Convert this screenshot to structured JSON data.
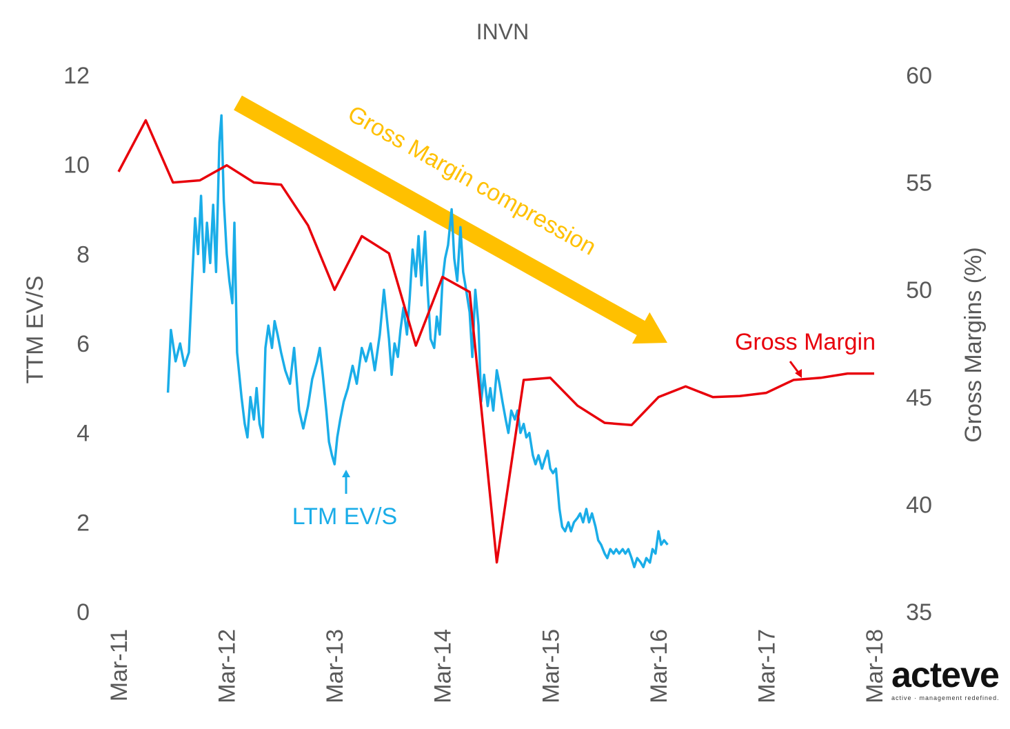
{
  "chart_data": {
    "type": "line",
    "title": "INVN",
    "x_tick_labels": [
      "Mar-11",
      "Mar-12",
      "Mar-13",
      "Mar-14",
      "Mar-15",
      "Mar-16",
      "Mar-17",
      "Mar-18"
    ],
    "xlim": [
      "2011-03",
      "2018-03"
    ],
    "y_left": {
      "label": "TTM EV/S",
      "ylim": [
        0,
        12
      ],
      "ticks": [
        "0",
        "2",
        "4",
        "6",
        "8",
        "10",
        "12"
      ]
    },
    "y_right": {
      "label": "Gross Margins (%)",
      "ylim": [
        35,
        60
      ],
      "ticks": [
        "35",
        "40",
        "45",
        "50",
        "55",
        "60"
      ]
    },
    "grid": false,
    "series": [
      {
        "name": "LTM EV/S",
        "axis": "left",
        "color": "#1AADE8",
        "points": [
          [
            "2011-08-15",
            4.9
          ],
          [
            "2011-08-25",
            6.3
          ],
          [
            "2011-09-10",
            5.6
          ],
          [
            "2011-09-25",
            6.0
          ],
          [
            "2011-10-10",
            5.5
          ],
          [
            "2011-10-25",
            5.8
          ],
          [
            "2011-11-05",
            7.4
          ],
          [
            "2011-11-15",
            8.8
          ],
          [
            "2011-11-25",
            8.0
          ],
          [
            "2011-12-05",
            9.3
          ],
          [
            "2011-12-15",
            7.6
          ],
          [
            "2011-12-25",
            8.7
          ],
          [
            "2012-01-05",
            7.8
          ],
          [
            "2012-01-15",
            9.1
          ],
          [
            "2012-01-25",
            7.6
          ],
          [
            "2012-02-05",
            10.5
          ],
          [
            "2012-02-12",
            11.1
          ],
          [
            "2012-02-20",
            9.2
          ],
          [
            "2012-03-01",
            8.0
          ],
          [
            "2012-03-10",
            7.4
          ],
          [
            "2012-03-20",
            6.9
          ],
          [
            "2012-03-27",
            8.7
          ],
          [
            "2012-04-05",
            5.8
          ],
          [
            "2012-04-20",
            4.8
          ],
          [
            "2012-05-01",
            4.2
          ],
          [
            "2012-05-10",
            3.9
          ],
          [
            "2012-05-20",
            4.8
          ],
          [
            "2012-06-01",
            4.3
          ],
          [
            "2012-06-10",
            5.0
          ],
          [
            "2012-06-20",
            4.2
          ],
          [
            "2012-07-01",
            3.9
          ],
          [
            "2012-07-10",
            5.9
          ],
          [
            "2012-07-20",
            6.4
          ],
          [
            "2012-08-01",
            5.9
          ],
          [
            "2012-08-10",
            6.5
          ],
          [
            "2012-08-20",
            6.2
          ],
          [
            "2012-09-01",
            5.8
          ],
          [
            "2012-09-15",
            5.4
          ],
          [
            "2012-10-01",
            5.1
          ],
          [
            "2012-10-15",
            5.9
          ],
          [
            "2012-11-01",
            4.5
          ],
          [
            "2012-11-15",
            4.1
          ],
          [
            "2012-12-01",
            4.6
          ],
          [
            "2012-12-15",
            5.2
          ],
          [
            "2013-01-01",
            5.6
          ],
          [
            "2013-01-10",
            5.9
          ],
          [
            "2013-01-20",
            5.3
          ],
          [
            "2013-02-01",
            4.5
          ],
          [
            "2013-02-10",
            3.8
          ],
          [
            "2013-02-20",
            3.5
          ],
          [
            "2013-03-01",
            3.3
          ],
          [
            "2013-03-10",
            3.9
          ],
          [
            "2013-03-20",
            4.3
          ],
          [
            "2013-04-01",
            4.7
          ],
          [
            "2013-04-15",
            5.0
          ],
          [
            "2013-05-01",
            5.5
          ],
          [
            "2013-05-15",
            5.1
          ],
          [
            "2013-06-01",
            5.9
          ],
          [
            "2013-06-15",
            5.6
          ],
          [
            "2013-07-01",
            6.0
          ],
          [
            "2013-07-15",
            5.4
          ],
          [
            "2013-08-01",
            6.2
          ],
          [
            "2013-08-15",
            7.2
          ],
          [
            "2013-09-01",
            6.1
          ],
          [
            "2013-09-10",
            5.3
          ],
          [
            "2013-09-20",
            6.0
          ],
          [
            "2013-10-01",
            5.7
          ],
          [
            "2013-10-10",
            6.3
          ],
          [
            "2013-10-20",
            6.8
          ],
          [
            "2013-11-01",
            6.2
          ],
          [
            "2013-11-10",
            7.0
          ],
          [
            "2013-11-20",
            8.1
          ],
          [
            "2013-12-01",
            7.5
          ],
          [
            "2013-12-10",
            8.4
          ],
          [
            "2013-12-20",
            7.3
          ],
          [
            "2014-01-01",
            8.5
          ],
          [
            "2014-01-10",
            7.2
          ],
          [
            "2014-01-20",
            6.1
          ],
          [
            "2014-02-01",
            5.9
          ],
          [
            "2014-02-10",
            6.6
          ],
          [
            "2014-02-20",
            6.2
          ],
          [
            "2014-03-01",
            7.4
          ],
          [
            "2014-03-10",
            7.9
          ],
          [
            "2014-03-20",
            8.2
          ],
          [
            "2014-04-01",
            9.0
          ],
          [
            "2014-04-10",
            7.9
          ],
          [
            "2014-04-20",
            7.4
          ],
          [
            "2014-05-01",
            8.6
          ],
          [
            "2014-05-10",
            7.6
          ],
          [
            "2014-05-20",
            7.2
          ],
          [
            "2014-06-01",
            6.7
          ],
          [
            "2014-06-10",
            5.7
          ],
          [
            "2014-06-20",
            7.2
          ],
          [
            "2014-07-01",
            6.4
          ],
          [
            "2014-07-10",
            4.7
          ],
          [
            "2014-07-20",
            5.3
          ],
          [
            "2014-08-01",
            4.6
          ],
          [
            "2014-08-10",
            5.0
          ],
          [
            "2014-08-20",
            4.5
          ],
          [
            "2014-09-01",
            5.4
          ],
          [
            "2014-09-10",
            5.1
          ],
          [
            "2014-09-20",
            4.7
          ],
          [
            "2014-10-01",
            4.3
          ],
          [
            "2014-10-10",
            4.0
          ],
          [
            "2014-10-20",
            4.5
          ],
          [
            "2014-11-01",
            4.3
          ],
          [
            "2014-11-10",
            4.5
          ],
          [
            "2014-11-20",
            4.0
          ],
          [
            "2014-12-01",
            4.2
          ],
          [
            "2014-12-10",
            3.9
          ],
          [
            "2014-12-20",
            4.0
          ],
          [
            "2015-01-01",
            3.5
          ],
          [
            "2015-01-10",
            3.3
          ],
          [
            "2015-01-20",
            3.5
          ],
          [
            "2015-02-01",
            3.2
          ],
          [
            "2015-02-10",
            3.4
          ],
          [
            "2015-02-20",
            3.6
          ],
          [
            "2015-03-01",
            3.2
          ],
          [
            "2015-03-10",
            3.1
          ],
          [
            "2015-03-20",
            3.2
          ],
          [
            "2015-04-01",
            2.3
          ],
          [
            "2015-04-10",
            1.9
          ],
          [
            "2015-04-20",
            1.8
          ],
          [
            "2015-05-01",
            2.0
          ],
          [
            "2015-05-10",
            1.8
          ],
          [
            "2015-05-20",
            2.0
          ],
          [
            "2015-06-01",
            2.1
          ],
          [
            "2015-06-10",
            2.2
          ],
          [
            "2015-06-20",
            2.0
          ],
          [
            "2015-07-01",
            2.3
          ],
          [
            "2015-07-10",
            2.0
          ],
          [
            "2015-07-20",
            2.2
          ],
          [
            "2015-08-01",
            1.9
          ],
          [
            "2015-08-10",
            1.6
          ],
          [
            "2015-08-20",
            1.5
          ],
          [
            "2015-09-01",
            1.3
          ],
          [
            "2015-09-10",
            1.2
          ],
          [
            "2015-09-20",
            1.4
          ],
          [
            "2015-10-01",
            1.3
          ],
          [
            "2015-10-10",
            1.4
          ],
          [
            "2015-10-20",
            1.3
          ],
          [
            "2015-11-01",
            1.4
          ],
          [
            "2015-11-10",
            1.3
          ],
          [
            "2015-11-20",
            1.4
          ],
          [
            "2015-12-01",
            1.2
          ],
          [
            "2015-12-10",
            1.0
          ],
          [
            "2015-12-20",
            1.2
          ],
          [
            "2016-01-01",
            1.1
          ],
          [
            "2016-01-10",
            1.0
          ],
          [
            "2016-01-20",
            1.2
          ],
          [
            "2016-02-01",
            1.1
          ],
          [
            "2016-02-10",
            1.4
          ],
          [
            "2016-02-20",
            1.3
          ],
          [
            "2016-03-01",
            1.8
          ],
          [
            "2016-03-10",
            1.5
          ],
          [
            "2016-03-20",
            1.6
          ],
          [
            "2016-04-01",
            1.5
          ]
        ]
      },
      {
        "name": "Gross Margin",
        "axis": "right",
        "color": "#E8000B",
        "points": [
          [
            "2011-03-01",
            55.5
          ],
          [
            "2011-06-01",
            57.9
          ],
          [
            "2011-09-01",
            55.0
          ],
          [
            "2011-12-01",
            55.1
          ],
          [
            "2012-03-01",
            55.8
          ],
          [
            "2012-06-01",
            55.0
          ],
          [
            "2012-09-01",
            54.9
          ],
          [
            "2012-12-01",
            53.0
          ],
          [
            "2013-03-01",
            50.0
          ],
          [
            "2013-06-01",
            52.5
          ],
          [
            "2013-09-01",
            51.7
          ],
          [
            "2013-12-01",
            47.4
          ],
          [
            "2014-03-01",
            50.6
          ],
          [
            "2014-06-01",
            49.9
          ],
          [
            "2014-09-01",
            37.3
          ],
          [
            "2014-12-01",
            45.8
          ],
          [
            "2015-03-01",
            45.9
          ],
          [
            "2015-06-01",
            44.6
          ],
          [
            "2015-09-01",
            43.8
          ],
          [
            "2015-12-01",
            43.7
          ],
          [
            "2016-03-01",
            45.0
          ],
          [
            "2016-06-01",
            45.5
          ],
          [
            "2016-09-01",
            45.0
          ],
          [
            "2016-12-01",
            45.05
          ],
          [
            "2017-03-01",
            45.2
          ],
          [
            "2017-06-01",
            45.8
          ],
          [
            "2017-09-01",
            45.9
          ],
          [
            "2017-12-01",
            46.1
          ],
          [
            "2018-03-01",
            46.1
          ]
        ]
      }
    ],
    "annotations": {
      "compression": "Gross Margin compression",
      "ev_label": "LTM EV/S",
      "gm_label": "Gross Margin"
    }
  },
  "colors": {
    "ev": "#1AADE8",
    "gm": "#E8000B",
    "arrow": "#FFC000",
    "text": "#595959"
  },
  "logo": {
    "word": "acteve",
    "tagline": "active · management redefined."
  }
}
